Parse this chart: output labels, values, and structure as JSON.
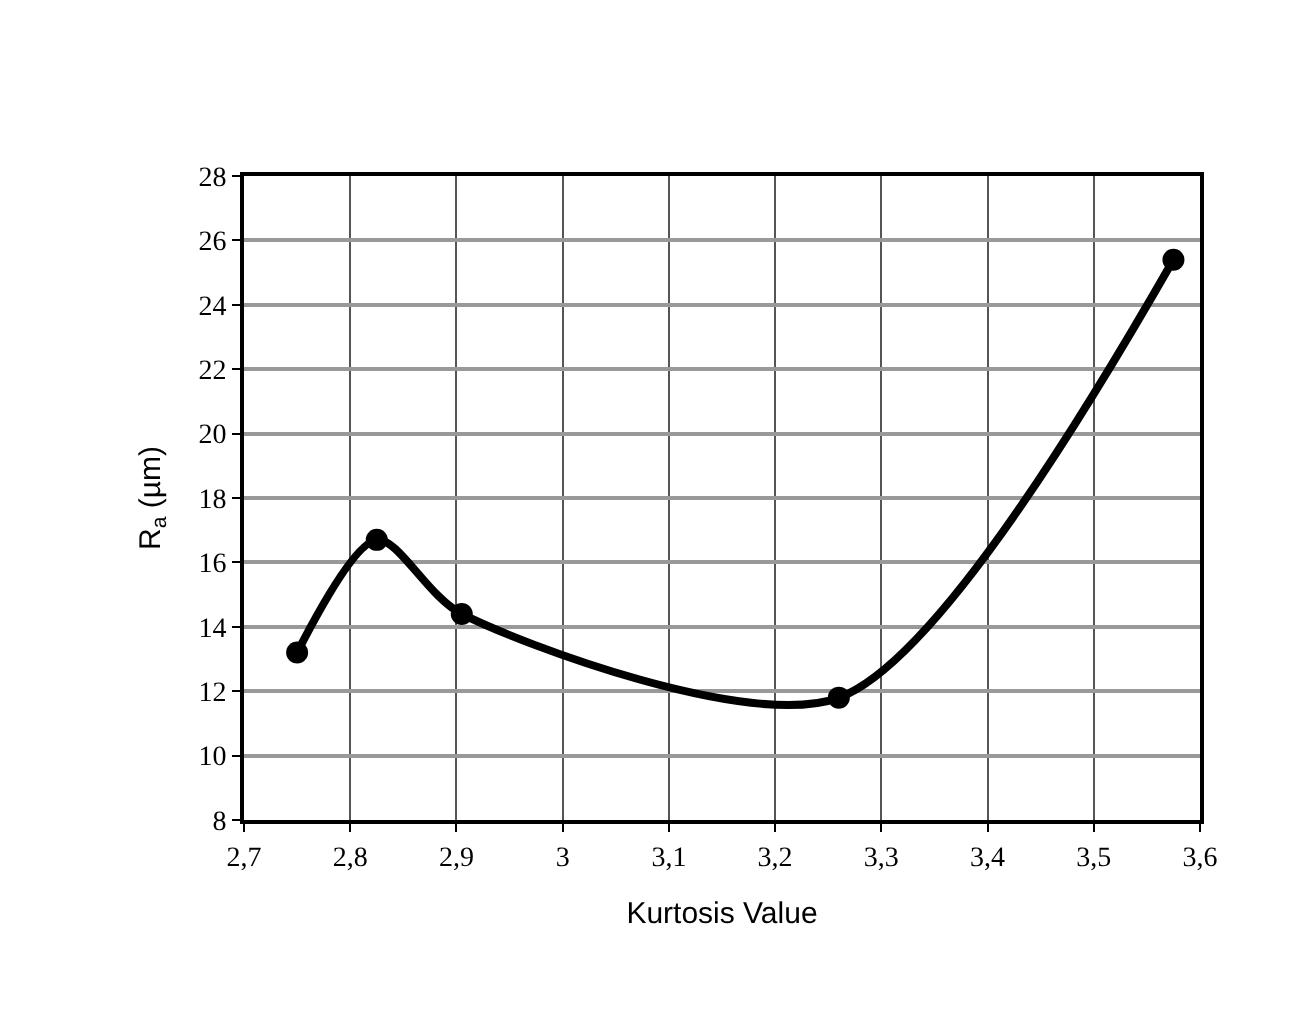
{
  "chart_data": {
    "type": "line",
    "xlabel": "Kurtosis Value",
    "ylabel": "R$_{a}$ (µm)",
    "x": [
      2.75,
      2.825,
      2.905,
      3.26,
      3.575
    ],
    "series": [
      {
        "color": "#000000",
        "values": [
          13.2,
          16.7,
          14.4,
          11.8,
          25.4
        ]
      }
    ],
    "xlim": [
      2.7,
      3.6
    ],
    "xticks": [
      {
        "value": 2.7,
        "label": "2,7"
      },
      {
        "value": 2.8,
        "label": "2,8"
      },
      {
        "value": 2.9,
        "label": "2,9"
      },
      3,
      {
        "value": 3.1,
        "label": "3,1"
      },
      {
        "value": 3.2,
        "label": "3,2"
      },
      {
        "value": 3.3,
        "label": "3,3"
      },
      {
        "value": 3.4,
        "label": "3,4"
      },
      {
        "value": 3.5,
        "label": "3,5"
      },
      {
        "value": 3.6,
        "label": "3,6"
      }
    ],
    "ylim": [
      8,
      28
    ],
    "yticks": [
      8,
      10,
      12,
      14,
      16,
      18,
      20,
      22,
      24,
      26,
      28
    ],
    "grid": true,
    "marker": "circle",
    "line_style": "solid"
  }
}
